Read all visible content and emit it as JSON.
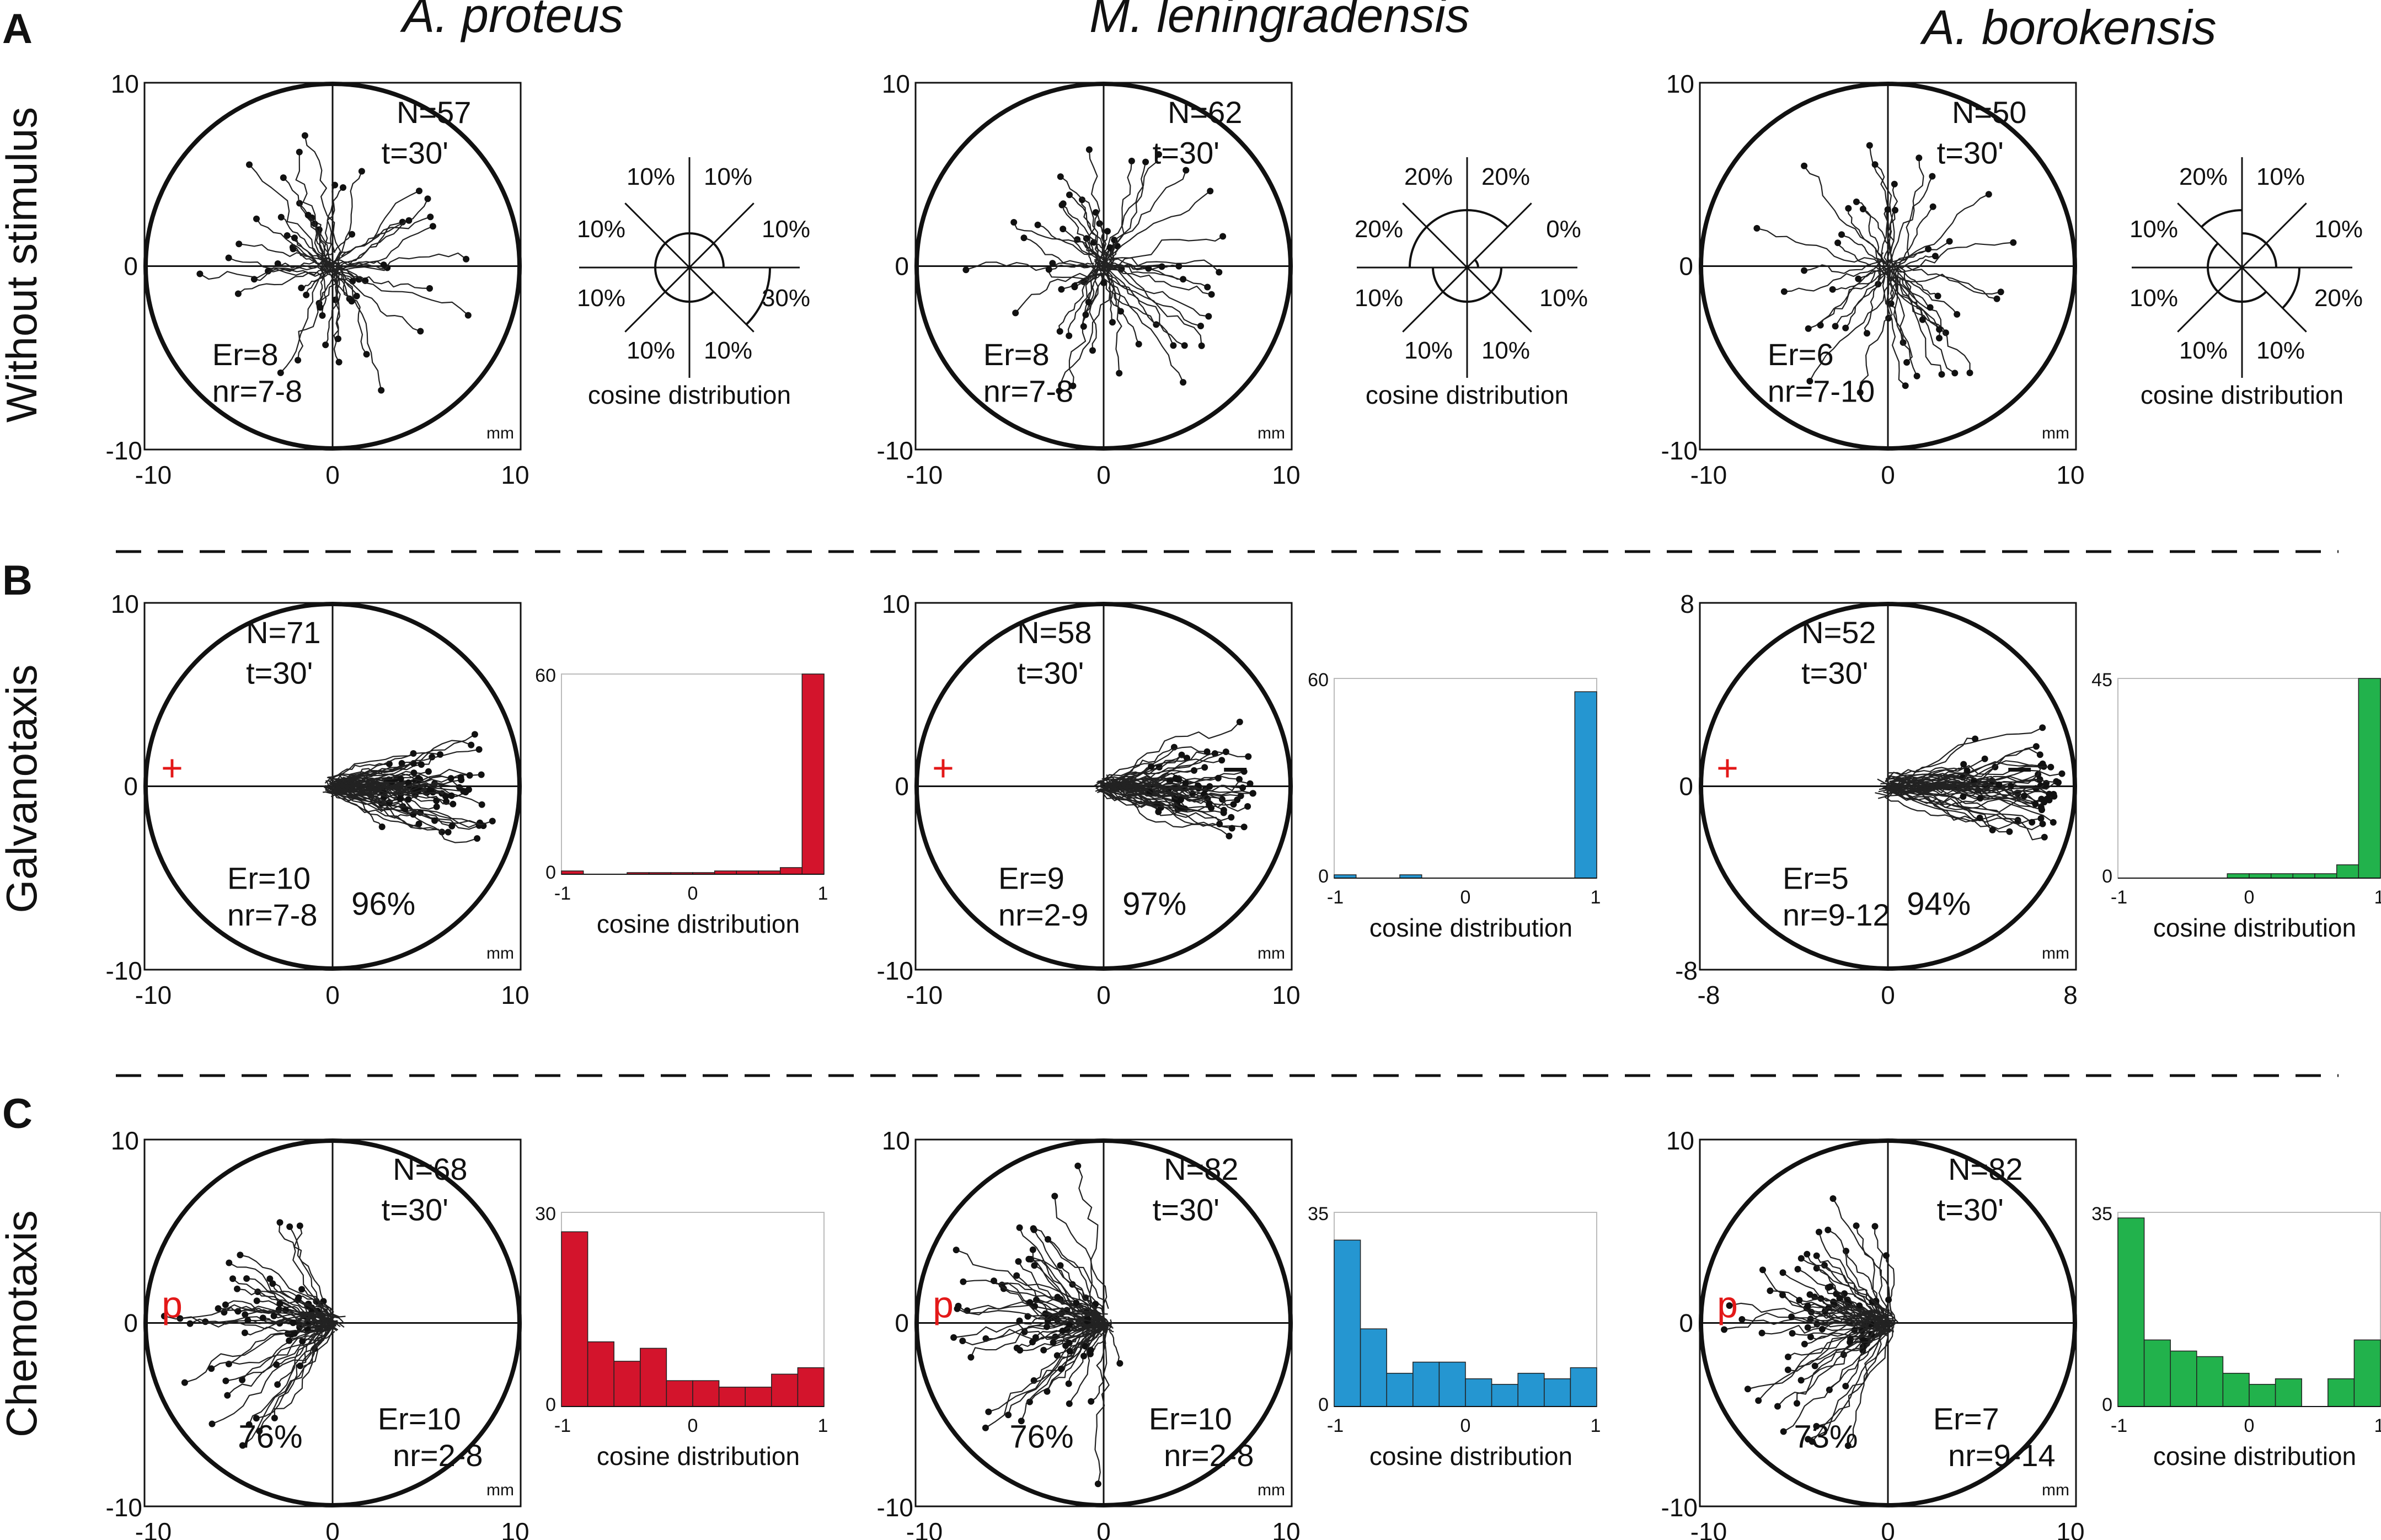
{
  "species": [
    "A. proteus",
    "M. leningradensis",
    "A. borokensis"
  ],
  "units": "mm",
  "rows": [
    {
      "letter": "A",
      "label": "Without stimulus"
    },
    {
      "letter": "B",
      "label": "Galvanotaxis"
    },
    {
      "letter": "C",
      "label": "Chemotaxis"
    }
  ],
  "colors": {
    "A. proteus": "#d3142c",
    "M. leningradensis": "#2596d1",
    "A. borokensis": "#22b24c",
    "marker": "#e31818"
  },
  "chart_data": [
    {
      "type": "scatter",
      "row": "A",
      "species": "A. proteus",
      "title": "A. proteus",
      "xlim": [
        -10,
        10
      ],
      "ylim": [
        -10,
        10
      ],
      "xticks": [
        "-10",
        "0",
        "10"
      ],
      "yticks": [
        "10",
        "0",
        "-10"
      ],
      "unit": "mm",
      "annotations": {
        "N": "N=57",
        "t": "t=30'",
        "Er": "Er=8",
        "nr": "nr=7-8",
        "percent": "",
        "marker": ""
      },
      "stats": {
        "N": 57,
        "minutes": 30,
        "Er": 8,
        "nr": "7-8"
      }
    },
    {
      "type": "scatter",
      "row": "A",
      "species": "M. leningradensis",
      "title": "M. leningradensis",
      "xlim": [
        -10,
        10
      ],
      "ylim": [
        -10,
        10
      ],
      "xticks": [
        "-10",
        "0",
        "10"
      ],
      "yticks": [
        "10",
        "0",
        "-10"
      ],
      "unit": "mm",
      "annotations": {
        "N": "N=62",
        "t": "t=30'",
        "Er": "Er=8",
        "nr": "nr=7-8",
        "percent": "",
        "marker": ""
      },
      "stats": {
        "N": 62,
        "minutes": 30,
        "Er": 8,
        "nr": "7-8"
      }
    },
    {
      "type": "scatter",
      "row": "A",
      "species": "A. borokensis",
      "title": "A. borokensis",
      "xlim": [
        -10,
        10
      ],
      "ylim": [
        -10,
        10
      ],
      "xticks": [
        "-10",
        "0",
        "10"
      ],
      "yticks": [
        "10",
        "0",
        "-10"
      ],
      "unit": "mm",
      "annotations": {
        "N": "N=50",
        "t": "t=30'",
        "Er": "Er=6",
        "nr": "nr=7-10",
        "percent": "",
        "marker": ""
      },
      "stats": {
        "N": 50,
        "minutes": 30,
        "Er": 6,
        "nr": "7-10"
      }
    },
    {
      "type": "rose",
      "row": "A",
      "species": "A. proteus",
      "title": "cosine distribution",
      "sectors": [
        {
          "label": "10%",
          "value": 10
        },
        {
          "label": "10%",
          "value": 10
        },
        {
          "label": "30%",
          "value": 30
        },
        {
          "label": "10%",
          "value": 10
        },
        {
          "label": "10%",
          "value": 10
        },
        {
          "label": "10%",
          "value": 10
        },
        {
          "label": "10%",
          "value": 10
        },
        {
          "label": "10%",
          "value": 10
        }
      ]
    },
    {
      "type": "rose",
      "row": "A",
      "species": "M. leningradensis",
      "title": "cosine distribution",
      "sectors": [
        {
          "label": "20%",
          "value": 20
        },
        {
          "label": "0%",
          "value": 0
        },
        {
          "label": "10%",
          "value": 10
        },
        {
          "label": "10%",
          "value": 10
        },
        {
          "label": "10%",
          "value": 10
        },
        {
          "label": "10%",
          "value": 10
        },
        {
          "label": "20%",
          "value": 20
        },
        {
          "label": "20%",
          "value": 20
        }
      ]
    },
    {
      "type": "rose",
      "row": "A",
      "species": "A. borokensis",
      "title": "cosine distribution",
      "sectors": [
        {
          "label": "10%",
          "value": 10
        },
        {
          "label": "10%",
          "value": 10
        },
        {
          "label": "20%",
          "value": 20
        },
        {
          "label": "10%",
          "value": 10
        },
        {
          "label": "10%",
          "value": 10
        },
        {
          "label": "10%",
          "value": 10
        },
        {
          "label": "10%",
          "value": 10
        },
        {
          "label": "20%",
          "value": 20
        }
      ]
    },
    {
      "type": "scatter",
      "row": "B",
      "species": "A. proteus",
      "title": "A. proteus",
      "xlim": [
        -10,
        10
      ],
      "ylim": [
        -10,
        10
      ],
      "xticks": [
        "-10",
        "0",
        "10"
      ],
      "yticks": [
        "10",
        "0",
        "-10"
      ],
      "unit": "mm",
      "annotations": {
        "N": "N=71",
        "t": "t=30'",
        "Er": "Er=10",
        "nr": "nr=7-8",
        "percent": "96%",
        "marker": "+"
      },
      "stats": {
        "N": 71,
        "minutes": 30,
        "Er": 10,
        "nr": "7-8",
        "directed_percent": 96
      }
    },
    {
      "type": "scatter",
      "row": "B",
      "species": "M. leningradensis",
      "title": "M. leningradensis",
      "xlim": [
        -10,
        10
      ],
      "ylim": [
        -10,
        10
      ],
      "xticks": [
        "-10",
        "0",
        "10"
      ],
      "yticks": [
        "10",
        "0",
        "-10"
      ],
      "unit": "mm",
      "annotations": {
        "N": "N=58",
        "t": "t=30'",
        "Er": "Er=9",
        "nr": "nr=2-9",
        "percent": "97%",
        "marker": "+"
      },
      "stats": {
        "N": 58,
        "minutes": 30,
        "Er": 9,
        "nr": "2-9",
        "directed_percent": 97
      }
    },
    {
      "type": "scatter",
      "row": "B",
      "species": "A. borokensis",
      "title": "A. borokensis",
      "xlim": [
        -8,
        8
      ],
      "ylim": [
        -8,
        8
      ],
      "xticks": [
        "-8",
        "0",
        "8"
      ],
      "yticks": [
        "8",
        "0",
        "-8"
      ],
      "unit": "mm",
      "annotations": {
        "N": "N=52",
        "t": "t=30'",
        "Er": "Er=5",
        "nr": "nr=9-12",
        "percent": "94%",
        "marker": "+"
      },
      "stats": {
        "N": 52,
        "minutes": 30,
        "Er": 5,
        "nr": "9-12",
        "directed_percent": 94
      }
    },
    {
      "type": "bar",
      "row": "B",
      "species": "A. proteus",
      "title": "cosine distribution",
      "xlim": [
        -1,
        1
      ],
      "ylim": [
        0,
        60
      ],
      "xticks": [
        "-1",
        "0",
        "1"
      ],
      "yticks": [
        "60",
        "0"
      ],
      "values": [
        1,
        0,
        0,
        0.5,
        0.5,
        0.5,
        0.5,
        1,
        1,
        1,
        2,
        60
      ]
    },
    {
      "type": "bar",
      "row": "B",
      "species": "M. leningradensis",
      "title": "cosine distribution",
      "xlim": [
        -1,
        1
      ],
      "ylim": [
        0,
        60
      ],
      "xticks": [
        "-1",
        "0",
        "1"
      ],
      "yticks": [
        "60",
        "0"
      ],
      "values": [
        1,
        0,
        0,
        1,
        0,
        0,
        0,
        0,
        0,
        0,
        0,
        56
      ]
    },
    {
      "type": "bar",
      "row": "B",
      "species": "A. borokensis",
      "title": "cosine distribution",
      "xlim": [
        -1,
        1
      ],
      "ylim": [
        0,
        45
      ],
      "xticks": [
        "-1",
        "0",
        "1"
      ],
      "yticks": [
        "45",
        "0"
      ],
      "values": [
        0,
        0,
        0,
        0,
        0,
        1,
        1,
        1,
        1,
        1,
        3,
        46
      ]
    },
    {
      "type": "scatter",
      "row": "C",
      "species": "A. proteus",
      "title": "A. proteus",
      "xlim": [
        -10,
        10
      ],
      "ylim": [
        -10,
        10
      ],
      "xticks": [
        "-10",
        "0",
        "10"
      ],
      "yticks": [
        "10",
        "0",
        "-10"
      ],
      "unit": "mm",
      "annotations": {
        "N": "N=68",
        "t": "t=30'",
        "Er": "Er=10",
        "nr": "nr=2-8",
        "percent": "76%",
        "marker": "p"
      },
      "stats": {
        "N": 68,
        "minutes": 30,
        "Er": 10,
        "nr": "2-8",
        "directed_percent": 76
      }
    },
    {
      "type": "scatter",
      "row": "C",
      "species": "M. leningradensis",
      "title": "M. leningradensis",
      "xlim": [
        -10,
        10
      ],
      "ylim": [
        -10,
        10
      ],
      "xticks": [
        "-10",
        "0",
        "10"
      ],
      "yticks": [
        "10",
        "0",
        "-10"
      ],
      "unit": "mm",
      "annotations": {
        "N": "N=82",
        "t": "t=30'",
        "Er": "Er=10",
        "nr": "nr=2-8",
        "percent": "76%",
        "marker": "p"
      },
      "stats": {
        "N": 82,
        "minutes": 30,
        "Er": 10,
        "nr": "2-8",
        "directed_percent": 76
      }
    },
    {
      "type": "scatter",
      "row": "C",
      "species": "A. borokensis",
      "title": "A. borokensis",
      "xlim": [
        -10,
        10
      ],
      "ylim": [
        -10,
        10
      ],
      "xticks": [
        "-10",
        "0",
        "10"
      ],
      "yticks": [
        "10",
        "0",
        "-10"
      ],
      "unit": "mm",
      "annotations": {
        "N": "N=82",
        "t": "t=30'",
        "Er": "Er=7",
        "nr": "nr=9-14",
        "percent": "73%",
        "marker": "p"
      },
      "stats": {
        "N": 82,
        "minutes": 30,
        "Er": 7,
        "nr": "9-14",
        "directed_percent": 73
      }
    },
    {
      "type": "bar",
      "row": "C",
      "species": "A. proteus",
      "title": "cosine distribution",
      "xlim": [
        -1,
        1
      ],
      "ylim": [
        0,
        30
      ],
      "xticks": [
        "-1",
        "0",
        "1"
      ],
      "yticks": [
        "30",
        "0"
      ],
      "values": [
        27,
        10,
        7,
        9,
        4,
        4,
        3,
        3,
        5,
        6
      ]
    },
    {
      "type": "bar",
      "row": "C",
      "species": "M. leningradensis",
      "title": "cosine distribution",
      "xlim": [
        -1,
        1
      ],
      "ylim": [
        0,
        35
      ],
      "xticks": [
        "-1",
        "0",
        "1"
      ],
      "yticks": [
        "35",
        "0"
      ],
      "values": [
        30,
        14,
        6,
        8,
        8,
        5,
        4,
        6,
        5,
        7
      ]
    },
    {
      "type": "bar",
      "row": "C",
      "species": "A. borokensis",
      "title": "cosine distribution",
      "xlim": [
        -1,
        1
      ],
      "ylim": [
        0,
        35
      ],
      "xticks": [
        "-1",
        "0",
        "1"
      ],
      "yticks": [
        "35",
        "0"
      ],
      "values": [
        34,
        12,
        10,
        9,
        6,
        4,
        5,
        0,
        5,
        12
      ]
    }
  ]
}
